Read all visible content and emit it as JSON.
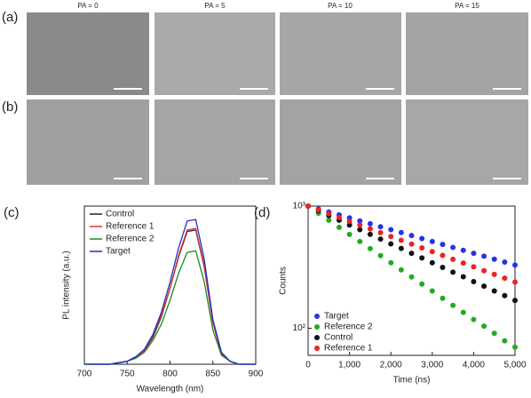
{
  "figure": {
    "panel_labels": [
      "(a)",
      "(b)",
      "(c)",
      "(d)"
    ],
    "image_labels": [
      "PA = 0",
      "PA = 5",
      "PA = 10",
      "PA = 15"
    ]
  },
  "chart_data": [
    {
      "type": "line",
      "ylabel": "PL intensity (a.u.)",
      "xlabel": "Wavelength (nm)",
      "legend": "upper left",
      "x": [
        700,
        710,
        720,
        730,
        740,
        750,
        760,
        770,
        780,
        790,
        800,
        810,
        820,
        830,
        840,
        850,
        860,
        870,
        880,
        890,
        900
      ],
      "xlim": [
        700,
        900
      ],
      "xticks": [
        700,
        750,
        800,
        850,
        900
      ],
      "ylim": [
        0,
        1.06
      ],
      "series": [
        {
          "name": "Control",
          "color": "#222222",
          "values": [
            0,
            0,
            0,
            0,
            0.01,
            0.02,
            0.05,
            0.09,
            0.18,
            0.32,
            0.51,
            0.72,
            0.89,
            0.9,
            0.65,
            0.28,
            0.07,
            0.02,
            0,
            0,
            0
          ]
        },
        {
          "name": "Reference 1",
          "color": "#e03030",
          "values": [
            0,
            0,
            0,
            0,
            0.01,
            0.02,
            0.05,
            0.09,
            0.19,
            0.33,
            0.51,
            0.73,
            0.9,
            0.91,
            0.66,
            0.28,
            0.07,
            0.02,
            0,
            0,
            0
          ]
        },
        {
          "name": "Reference 2",
          "color": "#1a8a1a",
          "values": [
            0,
            0,
            0,
            0,
            0.01,
            0.02,
            0.04,
            0.08,
            0.16,
            0.27,
            0.43,
            0.61,
            0.75,
            0.76,
            0.55,
            0.23,
            0.06,
            0.02,
            0,
            0,
            0
          ]
        },
        {
          "name": "Target",
          "color": "#1f2fd0",
          "values": [
            0,
            0,
            0,
            0,
            0.01,
            0.02,
            0.05,
            0.1,
            0.2,
            0.35,
            0.55,
            0.78,
            0.96,
            0.97,
            0.7,
            0.3,
            0.08,
            0.02,
            0,
            0,
            0
          ]
        }
      ]
    },
    {
      "type": "scatter",
      "ylabel": "Counts",
      "xlabel": "Time (ns)",
      "legend": "lower left",
      "ylog": true,
      "x": [
        0,
        250,
        500,
        750,
        1000,
        1250,
        1500,
        1750,
        2000,
        2250,
        2500,
        2750,
        3000,
        3250,
        3500,
        3750,
        4000,
        4250,
        4500,
        4750,
        5000
      ],
      "xlim": [
        0,
        5000
      ],
      "xticks": [
        0,
        {
          "value": 1000,
          "label": "1,000"
        },
        {
          "value": 2000,
          "label": "2,000"
        },
        {
          "value": 3000,
          "label": "3,000"
        },
        {
          "value": 4000,
          "label": "4,000"
        },
        {
          "value": 5000,
          "label": "5,000"
        }
      ],
      "ylim": [
        60,
        1000
      ],
      "yticks": [
        {
          "value": 100,
          "label": "10²"
        },
        {
          "value": 1000,
          "label": "10³"
        }
      ],
      "series": [
        {
          "name": "Target",
          "color": "#2233ee",
          "values": [
            1000,
            946,
            895,
            847,
            801,
            757,
            717,
            678,
            641,
            607,
            574,
            543,
            513,
            486,
            459,
            435,
            411,
            389,
            368,
            348,
            329
          ]
        },
        {
          "name": "Reference 2",
          "color": "#22aa22",
          "values": [
            1000,
            875,
            766,
            670,
            586,
            513,
            449,
            393,
            344,
            301,
            263,
            230,
            202,
            176,
            154,
            135,
            118,
            104,
            91,
            79,
            70
          ]
        },
        {
          "name": "Control",
          "color": "#111111",
          "values": [
            1000,
            915,
            837,
            766,
            701,
            641,
            587,
            537,
            491,
            450,
            411,
            376,
            344,
            315,
            288,
            264,
            241,
            221,
            202,
            185,
            169
          ]
        },
        {
          "name": "Reference 1",
          "color": "#ee2222",
          "values": [
            1000,
            931,
            867,
            807,
            751,
            699,
            651,
            606,
            564,
            525,
            489,
            455,
            424,
            395,
            367,
            342,
            318,
            296,
            276,
            257,
            239
          ]
        }
      ]
    }
  ]
}
